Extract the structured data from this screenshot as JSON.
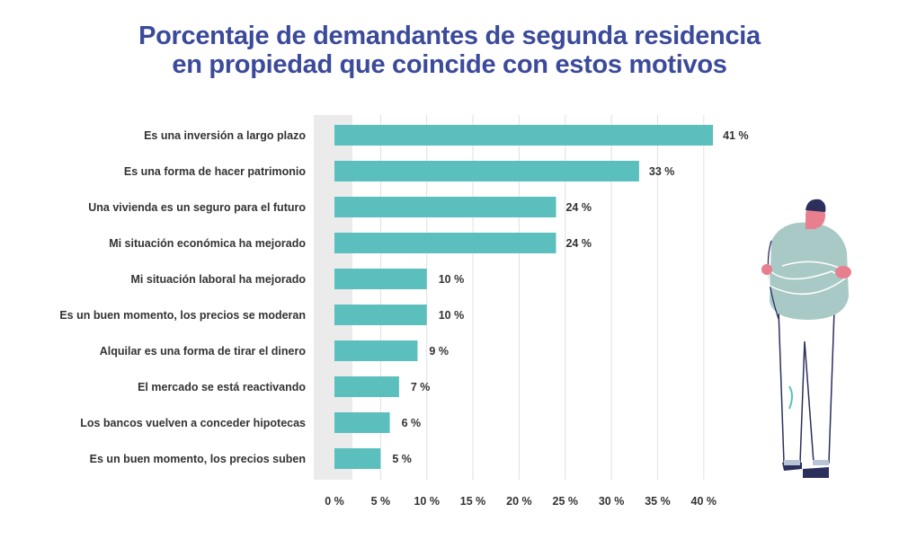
{
  "chart_data": {
    "type": "bar",
    "orientation": "horizontal",
    "title": [
      "Porcentaje de demandantes de segunda residencia",
      "en propiedad que coincide con estos motivos"
    ],
    "categories": [
      "Es una inversión a largo plazo",
      "Es una forma de hacer patrimonio",
      "Una vivienda es un seguro para el futuro",
      "Mi situación económica ha mejorado",
      "Mi situación laboral ha mejorado",
      "Es un buen momento, los precios se moderan",
      "Alquilar es una forma de tirar el dinero",
      "El mercado se está reactivando",
      "Los bancos vuelven a conceder hipotecas",
      "Es un buen momento, los precios suben"
    ],
    "values": [
      41,
      33,
      24,
      24,
      10,
      10,
      9,
      7,
      6,
      5
    ],
    "value_labels": [
      "41 %",
      "33 %",
      "24 %",
      "24 %",
      "10 %",
      "10 %",
      "9 %",
      "7 %",
      "6 %",
      "5 %"
    ],
    "xticks": [
      0,
      5,
      10,
      15,
      20,
      25,
      30,
      35,
      40
    ],
    "xtick_labels": [
      "0 %",
      "5 %",
      "10 %",
      "15 %",
      "20 %",
      "25 %",
      "30 %",
      "35 %",
      "40 %"
    ],
    "xlim": [
      0,
      40
    ],
    "xlabel": "",
    "ylabel": "",
    "grid": "vertical",
    "colors": {
      "bar": "#5bbfbd",
      "title": "#3b4a9a",
      "text": "#333333",
      "grid": "#e0e0e0",
      "band": "#ebebeb"
    }
  },
  "illustration": "person-with-crossed-arms"
}
